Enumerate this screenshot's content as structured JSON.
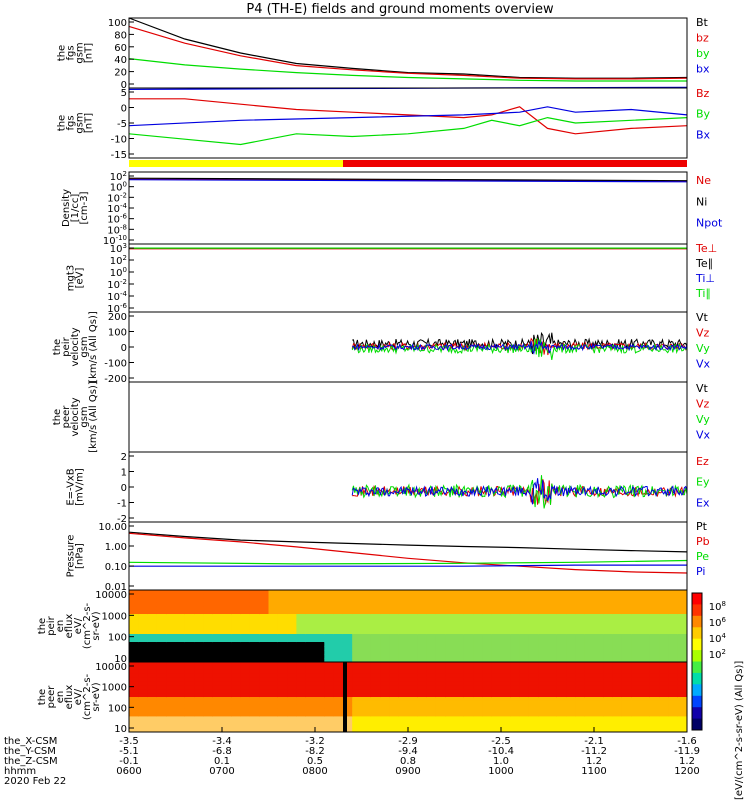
{
  "title": "P4 (TH-E) fields and ground moments overview",
  "colors": {
    "black": "#000000",
    "red": "#e00000",
    "green": "#00dd00",
    "blue": "#0000e0",
    "yellow": "#ffff00",
    "barred": "#ee0000"
  },
  "chart_data": [
    {
      "type": "line",
      "id": "fgs_mag",
      "ylabel": [
        "the",
        "fgs",
        "gsm",
        "[nT]"
      ],
      "ticks": [
        "100",
        "80",
        "60",
        "40",
        "20",
        "0"
      ],
      "ylim": [
        0,
        100
      ],
      "legend": [
        {
          "label": "Bt",
          "color": "black"
        },
        {
          "label": "bz",
          "color": "red"
        },
        {
          "label": "by",
          "color": "green"
        },
        {
          "label": "bx",
          "color": "blue"
        }
      ],
      "series": [
        {
          "name": "Bt",
          "color": "black",
          "x": [
            0,
            0.1,
            0.2,
            0.3,
            0.4,
            0.5,
            0.6,
            0.7,
            0.8,
            0.9,
            1.0
          ],
          "y": [
            100,
            70,
            50,
            35,
            28,
            22,
            20,
            15,
            14,
            14,
            15
          ]
        },
        {
          "name": "bz",
          "color": "red",
          "x": [
            0,
            0.1,
            0.2,
            0.3,
            0.4,
            0.5,
            0.6,
            0.7,
            0.8,
            0.9,
            1.0
          ],
          "y": [
            88,
            64,
            46,
            32,
            26,
            21,
            18,
            14,
            13,
            13,
            14
          ]
        },
        {
          "name": "by",
          "color": "green",
          "x": [
            0,
            0.1,
            0.2,
            0.3,
            0.4,
            0.5,
            0.6,
            0.7,
            0.8,
            0.9,
            1.0
          ],
          "y": [
            42,
            33,
            27,
            22,
            18,
            15,
            13,
            11,
            10,
            10,
            10
          ]
        },
        {
          "name": "bx",
          "color": "blue",
          "x": [
            0,
            0.3,
            0.6,
            1.0
          ],
          "y": [
            -2,
            -1,
            0,
            1
          ]
        }
      ]
    },
    {
      "type": "line",
      "id": "fgs_comp",
      "ylabel": [
        "the",
        "fgs",
        "gsm",
        "[nT]"
      ],
      "ticks": [
        "5",
        "0",
        "-5",
        "-10",
        "-15"
      ],
      "ylim": [
        -17,
        9
      ],
      "legend": [
        {
          "label": "Bz",
          "color": "red"
        },
        {
          "label": "By",
          "color": "green"
        },
        {
          "label": "Bx",
          "color": "blue"
        }
      ],
      "series": [
        {
          "name": "Bz",
          "color": "red",
          "x": [
            0,
            0.1,
            0.2,
            0.3,
            0.4,
            0.5,
            0.6,
            0.65,
            0.7,
            0.75,
            0.8,
            0.9,
            1.0
          ],
          "y": [
            5,
            5,
            3,
            1,
            0,
            -1,
            -2,
            -1,
            2,
            -6,
            -8,
            -6,
            -5
          ]
        },
        {
          "name": "By",
          "color": "green",
          "x": [
            0,
            0.1,
            0.2,
            0.3,
            0.4,
            0.5,
            0.6,
            0.65,
            0.7,
            0.75,
            0.8,
            0.9,
            1.0
          ],
          "y": [
            -8,
            -10,
            -12,
            -8,
            -9,
            -8,
            -6,
            -3,
            -5,
            -2,
            -4,
            -3,
            -2
          ]
        },
        {
          "name": "Bx",
          "color": "blue",
          "x": [
            0,
            0.2,
            0.4,
            0.6,
            0.7,
            0.75,
            0.8,
            0.9,
            1.0
          ],
          "y": [
            -5,
            -3,
            -2,
            -1,
            0,
            2,
            0,
            1,
            -1
          ]
        }
      ]
    },
    {
      "type": "line",
      "id": "density",
      "ylabel": [
        "Density",
        "[1/cc]",
        "[cm-3]"
      ],
      "ticks": [
        "10^2",
        "10^0",
        "10^-2",
        "10^-4",
        "10^-6",
        "10^-8",
        "10^-10"
      ],
      "ylim": [
        -11,
        3
      ],
      "legend": [
        {
          "label": "Ne",
          "color": "red"
        },
        {
          "label": "Ni",
          "color": "black"
        },
        {
          "label": "Npot",
          "color": "blue"
        }
      ],
      "series": [
        {
          "name": "Ne",
          "color": "red",
          "x": [
            0,
            1.0
          ],
          "y": [
            1.6,
            1.2
          ]
        },
        {
          "name": "Ni",
          "color": "black",
          "x": [
            0,
            1.0
          ],
          "y": [
            1.8,
            1.3
          ]
        },
        {
          "name": "Npot",
          "color": "blue",
          "x": [
            0,
            1.0
          ],
          "y": [
            1.5,
            1.1
          ]
        }
      ]
    },
    {
      "type": "line",
      "id": "temp",
      "ylabel": [
        "mgt3",
        "[eV]"
      ],
      "ticks": [
        "10^3",
        "10^2",
        "10^0",
        "10^-2",
        "10^-4",
        "10^-6"
      ],
      "ylim": [
        -7,
        3
      ],
      "legend": [
        {
          "label": "Te⊥",
          "color": "red"
        },
        {
          "label": "Te∥",
          "color": "black"
        },
        {
          "label": "Ti⊥",
          "color": "blue"
        },
        {
          "label": "Ti∥",
          "color": "green"
        }
      ],
      "series": [
        {
          "name": "Te⊥",
          "color": "red",
          "x": [
            0,
            1.0
          ],
          "y": [
            2.3,
            2.3
          ]
        },
        {
          "name": "Ti∥",
          "color": "green",
          "x": [
            0,
            1.0
          ],
          "y": [
            2.4,
            2.4
          ]
        }
      ]
    },
    {
      "type": "line",
      "id": "peir_vel",
      "ylabel": [
        "the",
        "peir",
        "velocity",
        "gsm",
        "[km/s (All Qs)]"
      ],
      "ticks": [
        "200",
        "100",
        "0",
        "-100",
        "-200"
      ],
      "ylim": [
        -200,
        200
      ],
      "legend": [
        {
          "label": "Vt",
          "color": "black"
        },
        {
          "label": "Vz",
          "color": "red"
        },
        {
          "label": "Vy",
          "color": "green"
        },
        {
          "label": "Vx",
          "color": "blue"
        }
      ],
      "series": [
        {
          "name": "Vt",
          "color": "black",
          "x": [
            0.38,
            1.0
          ],
          "y": [
            20,
            20
          ]
        }
      ]
    },
    {
      "type": "line",
      "id": "peer_vel",
      "ylabel": [
        "the",
        "peer",
        "velocity",
        "gsm",
        "[km/s (All Qs)]"
      ],
      "ticks": [],
      "ylim": [
        -200,
        200
      ],
      "legend": [
        {
          "label": "Vt",
          "color": "black"
        },
        {
          "label": "Vz",
          "color": "red"
        },
        {
          "label": "Vy",
          "color": "green"
        },
        {
          "label": "Vx",
          "color": "blue"
        }
      ],
      "series": []
    },
    {
      "type": "line",
      "id": "efield",
      "ylabel": [
        "E=-VxB",
        "[mV/m]"
      ],
      "ticks": [
        "2",
        "1",
        "0",
        "-1",
        "-2"
      ],
      "ylim": [
        -2.2,
        2.8
      ],
      "legend": [
        {
          "label": "Ez",
          "color": "red"
        },
        {
          "label": "Ey",
          "color": "green"
        },
        {
          "label": "Ex",
          "color": "blue"
        }
      ],
      "series": []
    },
    {
      "type": "line",
      "id": "pressure",
      "ylabel": [
        "Pressure",
        "[nPa]"
      ],
      "ticks": [
        "10.00",
        "1.00",
        "0.10",
        "0.01"
      ],
      "ylim": [
        -2,
        1
      ],
      "legend": [
        {
          "label": "Pt",
          "color": "black"
        },
        {
          "label": "Pb",
          "color": "red"
        },
        {
          "label": "Pe",
          "color": "green"
        },
        {
          "label": "Pi",
          "color": "blue"
        }
      ],
      "series": [
        {
          "name": "Pt",
          "color": "black",
          "x": [
            0,
            0.1,
            0.2,
            0.3,
            0.4,
            0.5,
            0.6,
            0.7,
            0.8,
            0.9,
            1.0
          ],
          "y": [
            0.55,
            0.36,
            0.2,
            0.12,
            0.05,
            -0.02,
            -0.08,
            -0.13,
            -0.2,
            -0.26,
            -0.32
          ]
        },
        {
          "name": "Pb",
          "color": "red",
          "x": [
            0,
            0.1,
            0.2,
            0.3,
            0.4,
            0.5,
            0.6,
            0.7,
            0.8,
            0.9,
            1.0
          ],
          "y": [
            0.5,
            0.3,
            0.12,
            -0.1,
            -0.35,
            -0.6,
            -0.8,
            -0.95,
            -1.1,
            -1.2,
            -1.25
          ]
        },
        {
          "name": "Pe",
          "color": "green",
          "x": [
            0,
            0.3,
            0.6,
            0.8,
            1.0
          ],
          "y": [
            -0.78,
            -0.85,
            -0.82,
            -0.78,
            -0.7
          ]
        },
        {
          "name": "Pi",
          "color": "blue",
          "x": [
            0,
            0.3,
            0.6,
            0.8,
            1.0
          ],
          "y": [
            -0.95,
            -0.95,
            -0.95,
            -0.9,
            -0.9
          ]
        }
      ]
    },
    {
      "type": "heatmap",
      "id": "peir_eflux",
      "ylabel": [
        "the",
        "peir",
        "en",
        "eflux",
        "eV/",
        "(cm^2-s-",
        "sr-eV)"
      ],
      "ticks": [
        "10000",
        "1000",
        "100",
        "10"
      ]
    },
    {
      "type": "heatmap",
      "id": "peer_eflux",
      "ylabel": [
        "the",
        "peer",
        "en",
        "eflux",
        "eV/",
        "(cm^2-s-",
        "sr-eV)"
      ],
      "ticks": [
        "10000",
        "1000",
        "100",
        "10"
      ]
    }
  ],
  "colorbar": {
    "ticks": [
      "10^8",
      "10^6",
      "10^4",
      "10^2"
    ],
    "label": "[eV/(cm^2-s-sr-eV) (All Qs)]"
  },
  "xaxis": {
    "rows": [
      {
        "label": "the_X-CSM",
        "values": [
          "-3.5",
          "-3.4",
          "-3.2",
          "-2.9",
          "-2.5",
          "-2.1",
          "-1.6"
        ]
      },
      {
        "label": "the_Y-CSM",
        "values": [
          "-5.1",
          "-6.8",
          "-8.2",
          "-9.4",
          "-10.4",
          "-11.2",
          "-11.9"
        ]
      },
      {
        "label": "the_Z-CSM",
        "values": [
          "-0.1",
          "0.1",
          "0.5",
          "0.8",
          "1.0",
          "1.2",
          "1.2"
        ]
      },
      {
        "label": "hhmm",
        "values": [
          "0600",
          "0700",
          "0800",
          "0900",
          "1000",
          "1100",
          "1200"
        ]
      }
    ],
    "date": "2020 Feb 22"
  }
}
